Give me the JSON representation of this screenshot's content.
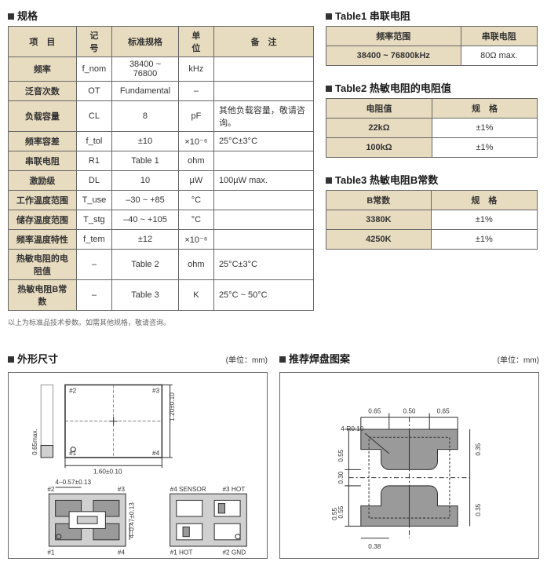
{
  "spec": {
    "title": "规格",
    "headers": [
      "项　目",
      "记　号",
      "标准规格",
      "单　位",
      "备　注"
    ],
    "rows": [
      {
        "item": "频率",
        "sym": "f_nom",
        "std": "38400 ~ 76800",
        "unit": "kHz",
        "note": ""
      },
      {
        "item": "泛音次数",
        "sym": "OT",
        "std": "Fundamental",
        "unit": "–",
        "note": ""
      },
      {
        "item": "负载容量",
        "sym": "CL",
        "std": "8",
        "unit": "pF",
        "note": "其他负载容量，敬请咨询。"
      },
      {
        "item": "频率容差",
        "sym": "f_tol",
        "std": "±10",
        "unit": "×10⁻⁶",
        "note": "25°C±3°C"
      },
      {
        "item": "串联电阻",
        "sym": "R1",
        "std": "Table 1",
        "unit": "ohm",
        "note": ""
      },
      {
        "item": "激励级",
        "sym": "DL",
        "std": "10",
        "unit": "µW",
        "note": "100µW max."
      },
      {
        "item": "工作温度范围",
        "sym": "T_use",
        "std": "–30 ~ +85",
        "unit": "°C",
        "note": ""
      },
      {
        "item": "储存温度范围",
        "sym": "T_stg",
        "std": "–40 ~ +105",
        "unit": "°C",
        "note": ""
      },
      {
        "item": "频率温度特性",
        "sym": "f_tem",
        "std": "±12",
        "unit": "×10⁻⁶",
        "note": ""
      },
      {
        "item": "热敏电阻的电阻值",
        "sym": "–",
        "std": "Table 2",
        "unit": "ohm",
        "note": "25°C±3°C"
      },
      {
        "item": "热敏电阻B常数",
        "sym": "–",
        "std": "Table 3",
        "unit": "K",
        "note": "25°C ~ 50°C"
      }
    ],
    "footnote": "以上为标准品技术参数。如需其他规格，敬请咨询。"
  },
  "table1": {
    "title": "Table1 串联电阻",
    "headers": [
      "频率范围",
      "串联电阻"
    ],
    "rows": [
      {
        "a": "38400 ~ 76800kHz",
        "b": "80Ω max."
      }
    ]
  },
  "table2": {
    "title": "Table2 热敏电阻的电阻值",
    "headers": [
      "电阻值",
      "规　格"
    ],
    "rows": [
      {
        "a": "22kΩ",
        "b": "±1%"
      },
      {
        "a": "100kΩ",
        "b": "±1%"
      }
    ]
  },
  "table3": {
    "title": "Table3 热敏电阻B常数",
    "headers": [
      "B常数",
      "规　格"
    ],
    "rows": [
      {
        "a": "3380K",
        "b": "±1%"
      },
      {
        "a": "4250K",
        "b": "±1%"
      }
    ]
  },
  "outline": {
    "title": "外形尺寸",
    "unit": "(单位：mm)",
    "dims": {
      "w": "1.60±0.10",
      "h": "1.20±0.10",
      "t": "0.65max.",
      "padW": "4–0.57±0.13",
      "padH": "4–0.47±0.13"
    },
    "labels": {
      "tl": "#2",
      "tr": "#3",
      "bl": "#1",
      "br": "#4",
      "p1": "#1 HOT",
      "p2": "#2 GND",
      "p3": "#3 HOT",
      "p4": "#4 SENSOR"
    }
  },
  "footprint": {
    "title": "推荐焊盘图案",
    "unit": "(单位：mm)",
    "dims": {
      "gapX": "0.50",
      "outX": "0.65",
      "gapY": "0.30",
      "outY": "0.55",
      "sideY": "0.35",
      "innerW": "0.38",
      "innerH": "0.55",
      "radius": "4-R0.10"
    }
  },
  "colors": {
    "headerBg": "#e8dcc0",
    "border": "#666666",
    "text": "#333333",
    "diagramFill": "#d0d0d0",
    "diagramDark": "#9a9a9a"
  }
}
